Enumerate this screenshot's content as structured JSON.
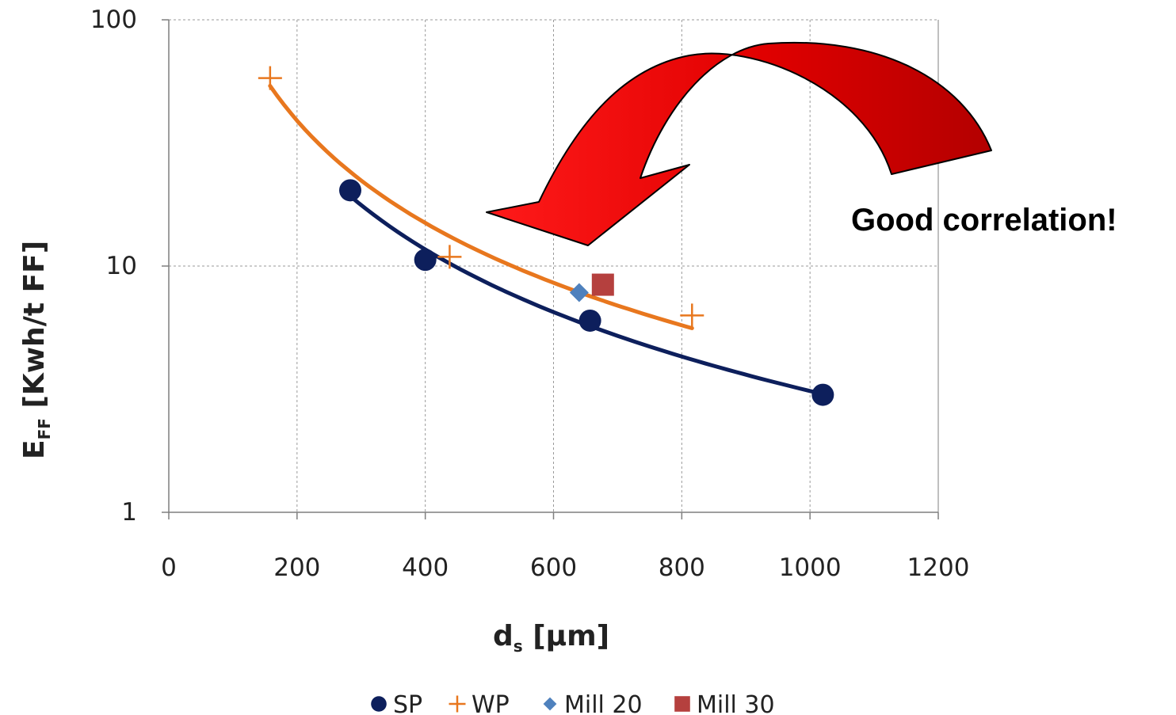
{
  "chart_data": {
    "type": "scatter",
    "title": "",
    "x_axis": {
      "label_main": "d",
      "label_sub": "s",
      "label_rest": " [µm]",
      "range": [
        0,
        1200
      ],
      "ticks": [
        "0",
        "200",
        "400",
        "600",
        "800",
        "1000",
        "1200"
      ],
      "scale": "linear"
    },
    "y_axis": {
      "label_main": "E",
      "label_sub": "FF",
      "label_rest": " [Kwh/t FF]",
      "range": [
        1,
        100
      ],
      "ticks": [
        "1",
        "10",
        "100"
      ],
      "scale": "log"
    },
    "grid": true,
    "legend_position": "bottom",
    "series": [
      {
        "name": "SP",
        "marker": "circle",
        "color": "#0d1f5c",
        "points": [
          [
            283,
            20.3
          ],
          [
            400,
            10.6
          ],
          [
            657,
            6.0
          ],
          [
            1020,
            3.0
          ]
        ],
        "trendline": {
          "color": "#0d1f5c",
          "x_range": [
            283,
            1020
          ]
        }
      },
      {
        "name": "WP",
        "marker": "plus",
        "color": "#e8771e",
        "points": [
          [
            158,
            58
          ],
          [
            438,
            10.9
          ],
          [
            816,
            6.3
          ]
        ],
        "trendline": {
          "color": "#e8771e",
          "x_range": [
            158,
            816
          ]
        }
      },
      {
        "name": "Mill 20",
        "marker": "diamond",
        "color": "#4f81bd",
        "points": [
          [
            640,
            7.8
          ]
        ]
      },
      {
        "name": "Mill 30",
        "marker": "square",
        "color": "#b5403e",
        "points": [
          [
            677,
            8.4
          ]
        ]
      }
    ],
    "annotations": [
      {
        "text": "Good correlation!"
      }
    ]
  }
}
